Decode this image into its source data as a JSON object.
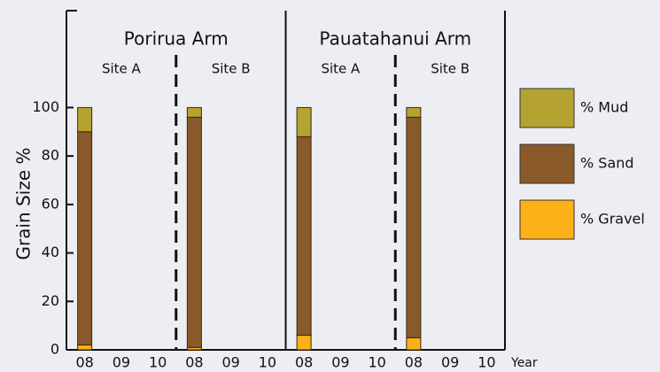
{
  "chart_data": {
    "type": "bar",
    "stacked": true,
    "y_label": "Grain Size %",
    "x_label": "Year",
    "groups": [
      {
        "name": "Porirua Arm",
        "sites": [
          "Site A",
          "Site B"
        ]
      },
      {
        "name": "Pauatahanui Arm",
        "sites": [
          "Site A",
          "Site B"
        ]
      }
    ],
    "categories": [
      "08",
      "09",
      "10",
      "08",
      "09",
      "10",
      "08",
      "09",
      "10",
      "08",
      "09",
      "10"
    ],
    "series": [
      {
        "name": "% Gravel",
        "color": "#fbb117",
        "values": [
          2,
          null,
          null,
          1,
          null,
          null,
          6,
          null,
          null,
          5,
          null,
          null
        ]
      },
      {
        "name": "% Sand",
        "color": "#8a5a2b",
        "values": [
          88,
          null,
          null,
          95,
          null,
          null,
          82,
          null,
          null,
          91,
          null,
          null
        ]
      },
      {
        "name": "% Mud",
        "color": "#b5a331",
        "values": [
          10,
          null,
          null,
          4,
          null,
          null,
          12,
          null,
          null,
          4,
          null,
          null
        ]
      }
    ],
    "ylim": [
      0,
      140
    ],
    "yticks": [
      0,
      20,
      40,
      60,
      80,
      100
    ],
    "grid": false,
    "legend": "right"
  }
}
